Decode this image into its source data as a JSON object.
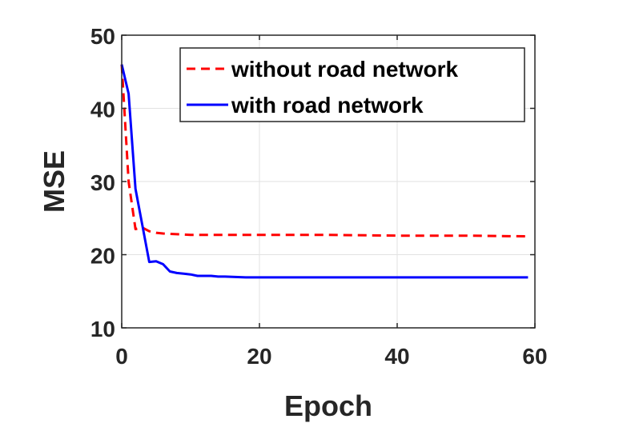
{
  "chart_data": {
    "type": "line",
    "title": "",
    "xlabel": "Epoch",
    "ylabel": "MSE",
    "xlim": [
      0,
      60
    ],
    "ylim": [
      10,
      50
    ],
    "xticks": [
      "0",
      "20",
      "40",
      "60"
    ],
    "yticks": [
      "10",
      "20",
      "30",
      "40",
      "50"
    ],
    "grid": true,
    "legend_position": "top-right",
    "series": [
      {
        "name": "without road network",
        "color": "#ff0000",
        "line_style": "dashed",
        "x": [
          0,
          1,
          2,
          3,
          4,
          5,
          6,
          8,
          10,
          15,
          20,
          30,
          40,
          50,
          59
        ],
        "y": [
          46.0,
          30.0,
          23.5,
          23.7,
          23.2,
          23.0,
          22.9,
          22.8,
          22.7,
          22.7,
          22.7,
          22.7,
          22.6,
          22.6,
          22.5
        ]
      },
      {
        "name": "with road network",
        "color": "#0000ff",
        "line_style": "solid",
        "x": [
          0,
          1,
          2,
          3,
          4,
          5,
          6,
          7,
          8,
          9,
          10,
          11,
          12,
          13,
          14,
          15,
          18,
          20,
          25,
          30,
          40,
          50,
          59
        ],
        "y": [
          46.0,
          42.0,
          29.0,
          24.0,
          19.0,
          19.1,
          18.7,
          17.7,
          17.5,
          17.4,
          17.3,
          17.1,
          17.1,
          17.1,
          17.0,
          17.0,
          16.9,
          16.9,
          16.9,
          16.9,
          16.9,
          16.9,
          16.9
        ]
      }
    ]
  }
}
